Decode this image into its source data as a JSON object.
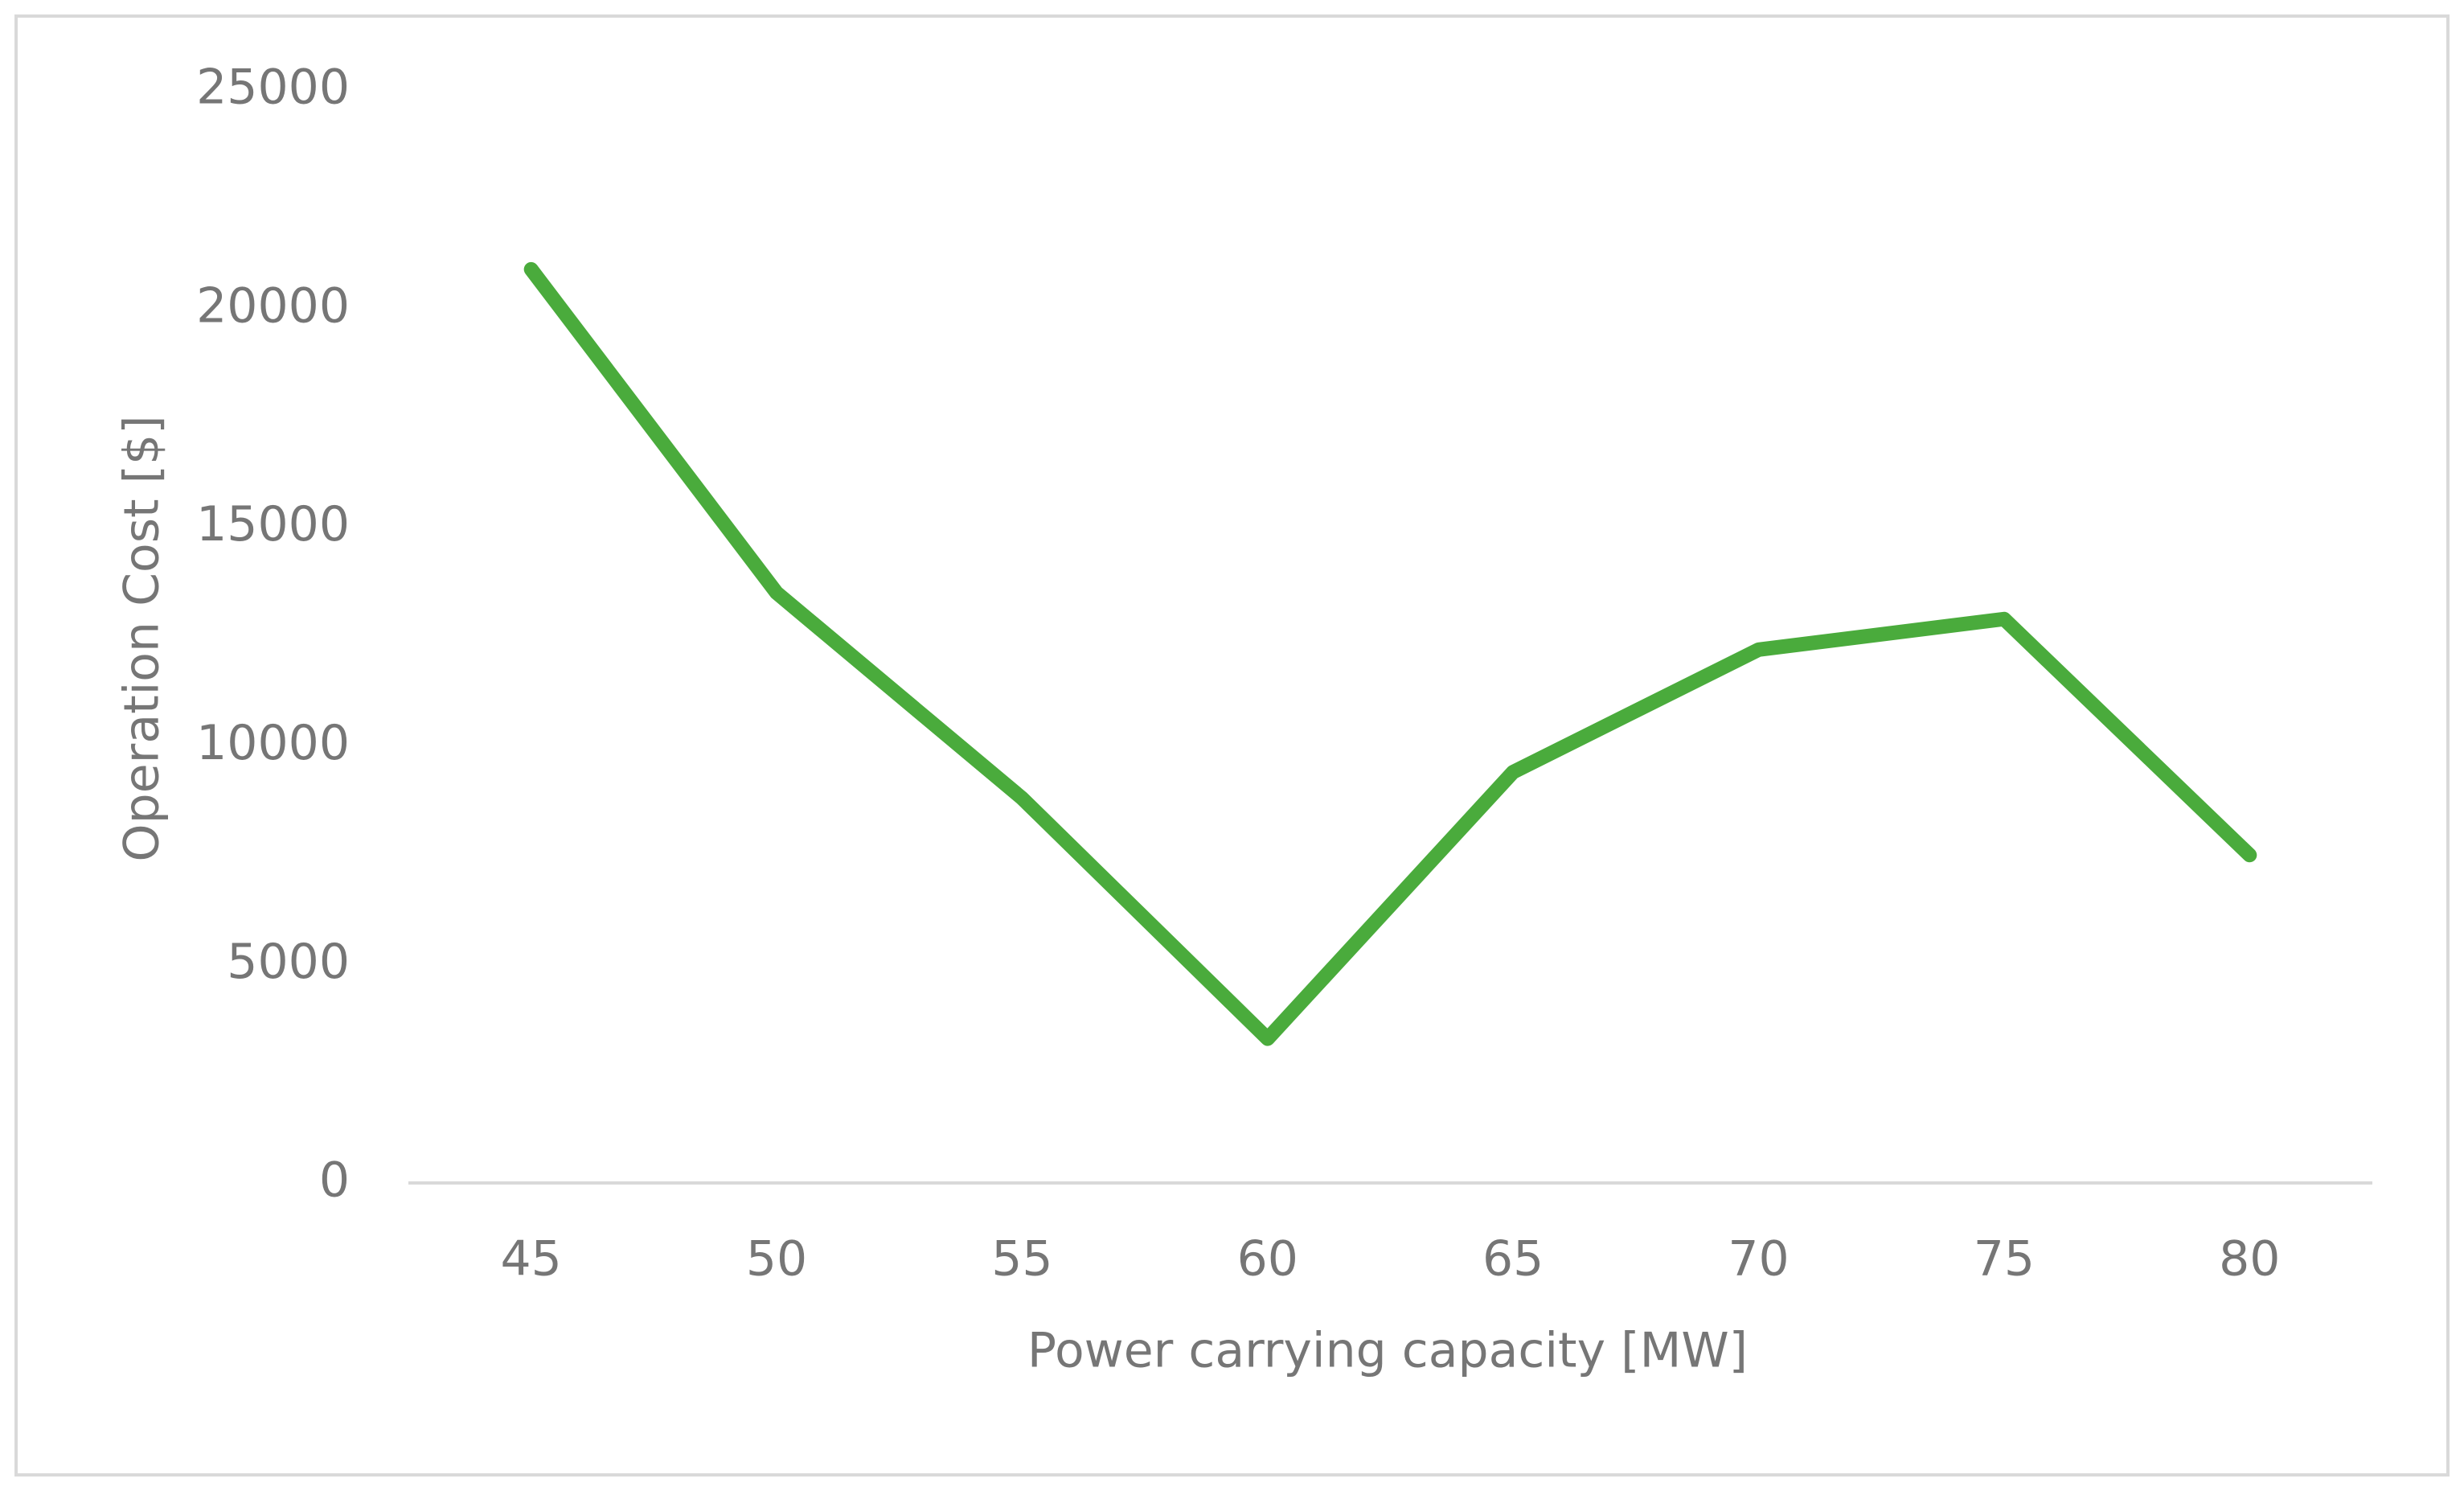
{
  "chart_data": {
    "type": "line",
    "x_label": "Power carrying capacity [MW]",
    "y_label": "Operation Cost [$]",
    "categories": [
      45,
      50,
      55,
      60,
      65,
      70,
      75,
      80
    ],
    "series": [
      {
        "color": "#4aab3c",
        "values": [
          20900,
          13500,
          8800,
          3300,
          9400,
          12200,
          12900,
          7500
        ]
      }
    ],
    "ylim": [
      0,
      25000
    ],
    "yticks": [
      0,
      5000,
      10000,
      15000,
      20000,
      25000
    ],
    "grid": false
  }
}
